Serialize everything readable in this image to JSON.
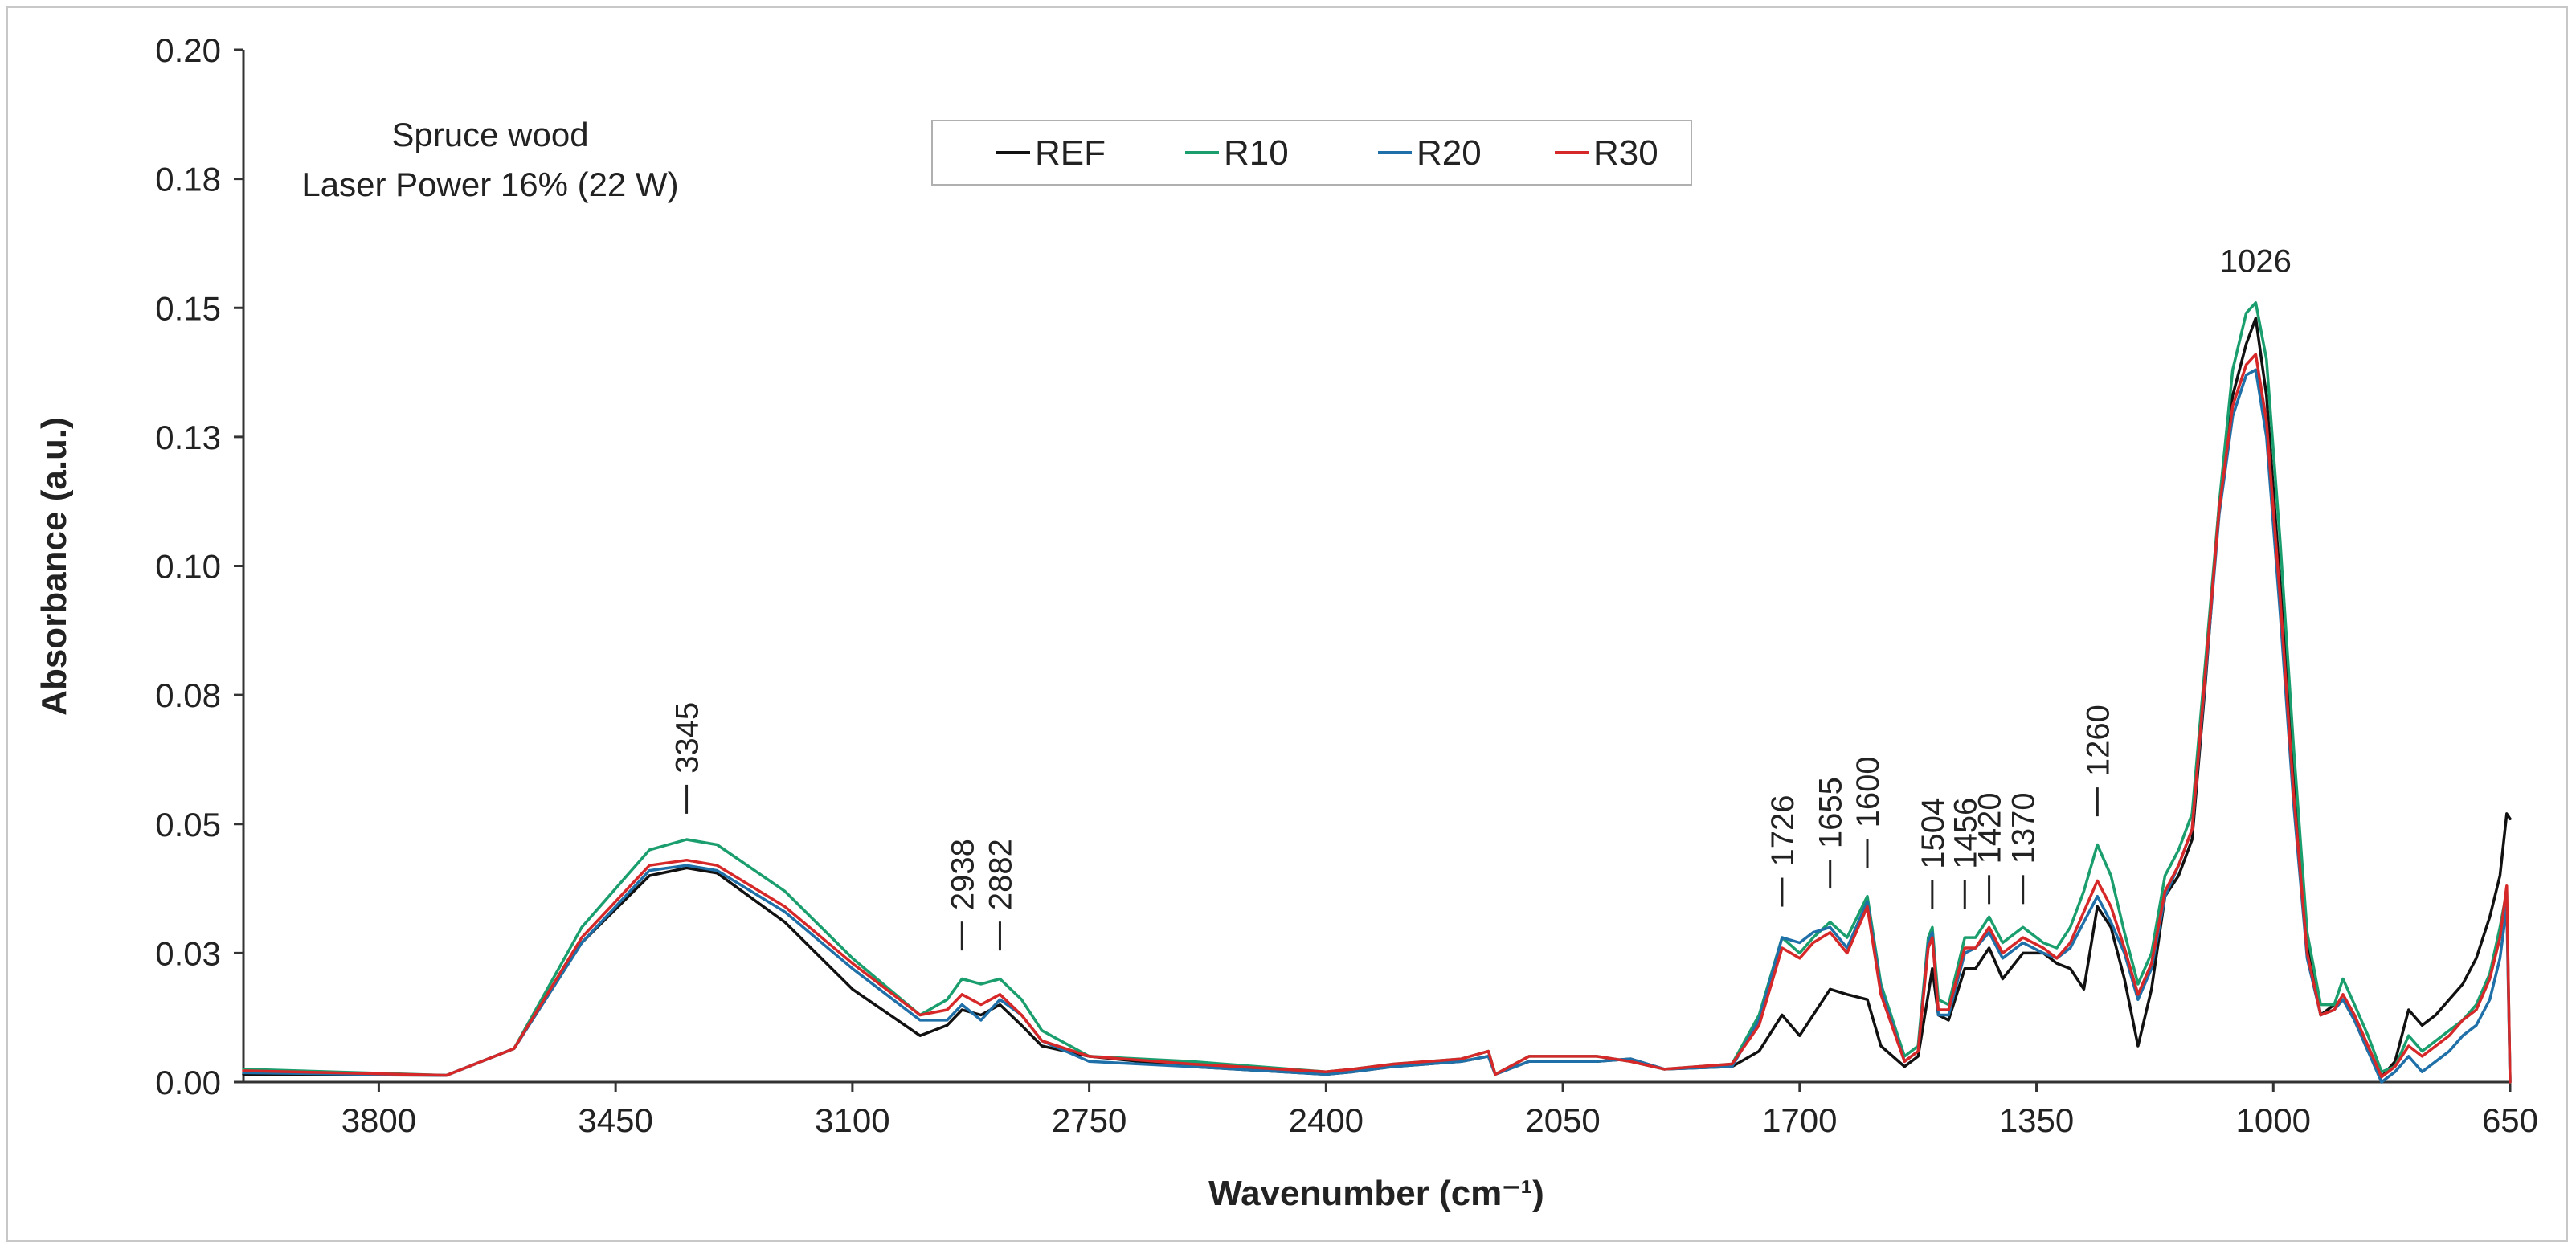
{
  "chart_data": {
    "type": "line",
    "title": "",
    "sample_label_line1": "Spruce wood",
    "sample_label_line2": "Laser Power 16% (22 W)",
    "xlabel": "Wavenumber (cm⁻¹)",
    "ylabel": "Absorbance (a.u.)",
    "xlim": [
      4000,
      650
    ],
    "ylim": [
      0,
      0.2
    ],
    "x_reversed": true,
    "x_ticks": [
      {
        "value": 3800,
        "label": "3800"
      },
      {
        "value": 3450,
        "label": "3450"
      },
      {
        "value": 3100,
        "label": "3100"
      },
      {
        "value": 2750,
        "label": "2750"
      },
      {
        "value": 2400,
        "label": "2400"
      },
      {
        "value": 2050,
        "label": "2050"
      },
      {
        "value": 1700,
        "label": "1700"
      },
      {
        "value": 1350,
        "label": "1350"
      },
      {
        "value": 1000,
        "label": "1000"
      },
      {
        "value": 650,
        "label": "650"
      }
    ],
    "y_ticks": [
      {
        "value": 0,
        "label": "0.00"
      },
      {
        "value": 0.025,
        "label": "0.03"
      },
      {
        "value": 0.05,
        "label": "0.05"
      },
      {
        "value": 0.075,
        "label": "0.08"
      },
      {
        "value": 0.1,
        "label": "0.10"
      },
      {
        "value": 0.125,
        "label": "0.13"
      },
      {
        "value": 0.15,
        "label": "0.15"
      },
      {
        "value": 0.175,
        "label": "0.18"
      },
      {
        "value": 0.2,
        "label": "0.20"
      }
    ],
    "grid": false,
    "legend_position": "top-center",
    "peak_annotations": [
      {
        "wavenumber": 3345,
        "label": "3345",
        "y": 0.052
      },
      {
        "wavenumber": 2938,
        "label": "2938",
        "y": 0.0255
      },
      {
        "wavenumber": 2882,
        "label": "2882",
        "y": 0.0255
      },
      {
        "wavenumber": 1726,
        "label": "1726",
        "y": 0.034
      },
      {
        "wavenumber": 1655,
        "label": "1655",
        "y": 0.0375
      },
      {
        "wavenumber": 1600,
        "label": "1600",
        "y": 0.0415
      },
      {
        "wavenumber": 1504,
        "label": "1504",
        "y": 0.0335
      },
      {
        "wavenumber": 1456,
        "label": "1456",
        "y": 0.0335
      },
      {
        "wavenumber": 1420,
        "label": "1420",
        "y": 0.0345
      },
      {
        "wavenumber": 1370,
        "label": "1370",
        "y": 0.0345
      },
      {
        "wavenumber": 1260,
        "label": "1260",
        "y": 0.0515
      },
      {
        "wavenumber": 1026,
        "label": "1026",
        "y": 0.157,
        "horizontal": true
      }
    ],
    "x": [
      4000,
      3700,
      3600,
      3500,
      3400,
      3345,
      3300,
      3200,
      3100,
      3000,
      2960,
      2938,
      2910,
      2882,
      2850,
      2820,
      2750,
      2600,
      2400,
      2360,
      2300,
      2200,
      2160,
      2150,
      2100,
      2000,
      1950,
      1900,
      1800,
      1760,
      1726,
      1700,
      1680,
      1655,
      1630,
      1600,
      1580,
      1545,
      1525,
      1510,
      1504,
      1495,
      1480,
      1456,
      1440,
      1420,
      1400,
      1370,
      1340,
      1320,
      1300,
      1280,
      1260,
      1240,
      1220,
      1200,
      1180,
      1160,
      1140,
      1120,
      1100,
      1080,
      1060,
      1040,
      1026,
      1010,
      990,
      970,
      950,
      930,
      910,
      897,
      880,
      860,
      840,
      820,
      800,
      780,
      760,
      740,
      720,
      700,
      680,
      665,
      655,
      650
    ],
    "series": [
      {
        "name": "REF",
        "color": "#111111",
        "values": [
          0.0015,
          0.0013,
          0.0065,
          0.027,
          0.04,
          0.0415,
          0.0405,
          0.031,
          0.018,
          0.009,
          0.011,
          0.014,
          0.013,
          0.015,
          0.011,
          0.007,
          0.005,
          0.003,
          0.0015,
          0.002,
          0.003,
          0.004,
          0.005,
          0.0015,
          0.004,
          0.004,
          0.0045,
          0.0025,
          0.003,
          0.006,
          0.013,
          0.009,
          0.013,
          0.018,
          0.017,
          0.016,
          0.007,
          0.003,
          0.005,
          0.017,
          0.022,
          0.013,
          0.012,
          0.022,
          0.022,
          0.026,
          0.02,
          0.025,
          0.025,
          0.023,
          0.022,
          0.018,
          0.034,
          0.03,
          0.02,
          0.007,
          0.018,
          0.036,
          0.04,
          0.047,
          0.078,
          0.112,
          0.133,
          0.143,
          0.148,
          0.133,
          0.097,
          0.06,
          0.027,
          0.013,
          0.015,
          0.016,
          0.012,
          0.006,
          0.001,
          0.004,
          0.014,
          0.011,
          0.013,
          0.016,
          0.019,
          0.024,
          0.032,
          0.04,
          0.052,
          0.051
        ]
      },
      {
        "name": "R10",
        "color": "#1a9e6e",
        "values": [
          0.0025,
          0.0013,
          0.0065,
          0.03,
          0.045,
          0.047,
          0.046,
          0.037,
          0.024,
          0.013,
          0.016,
          0.02,
          0.019,
          0.02,
          0.016,
          0.01,
          0.005,
          0.004,
          0.002,
          0.0025,
          0.0035,
          0.0045,
          0.006,
          0.0015,
          0.005,
          0.005,
          0.004,
          0.0025,
          0.0035,
          0.013,
          0.028,
          0.025,
          0.028,
          0.031,
          0.028,
          0.036,
          0.019,
          0.005,
          0.007,
          0.028,
          0.03,
          0.016,
          0.015,
          0.028,
          0.028,
          0.032,
          0.027,
          0.03,
          0.027,
          0.026,
          0.03,
          0.037,
          0.046,
          0.04,
          0.029,
          0.019,
          0.025,
          0.04,
          0.045,
          0.052,
          0.082,
          0.112,
          0.138,
          0.149,
          0.151,
          0.14,
          0.105,
          0.065,
          0.029,
          0.015,
          0.015,
          0.02,
          0.015,
          0.009,
          0.002,
          0.003,
          0.009,
          0.006,
          0.008,
          0.01,
          0.012,
          0.015,
          0.021,
          0.03,
          0.037,
          0.0
        ]
      },
      {
        "name": "R20",
        "color": "#1f70a8",
        "values": [
          0.0018,
          0.0013,
          0.0065,
          0.027,
          0.041,
          0.042,
          0.041,
          0.033,
          0.022,
          0.012,
          0.012,
          0.015,
          0.012,
          0.016,
          0.013,
          0.008,
          0.004,
          0.003,
          0.0015,
          0.002,
          0.003,
          0.004,
          0.005,
          0.0015,
          0.004,
          0.004,
          0.0045,
          0.0025,
          0.003,
          0.012,
          0.028,
          0.027,
          0.029,
          0.03,
          0.026,
          0.035,
          0.018,
          0.004,
          0.006,
          0.027,
          0.029,
          0.013,
          0.013,
          0.025,
          0.026,
          0.029,
          0.024,
          0.027,
          0.025,
          0.024,
          0.026,
          0.031,
          0.036,
          0.031,
          0.025,
          0.016,
          0.022,
          0.036,
          0.042,
          0.049,
          0.079,
          0.11,
          0.129,
          0.137,
          0.138,
          0.125,
          0.091,
          0.054,
          0.024,
          0.013,
          0.014,
          0.016,
          0.012,
          0.006,
          0.0,
          0.002,
          0.005,
          0.002,
          0.004,
          0.006,
          0.009,
          0.011,
          0.016,
          0.024,
          0.034,
          0.0
        ]
      },
      {
        "name": "R30",
        "color": "#d62828",
        "values": [
          0.0022,
          0.0013,
          0.0065,
          0.028,
          0.042,
          0.043,
          0.042,
          0.034,
          0.023,
          0.013,
          0.014,
          0.017,
          0.015,
          0.017,
          0.013,
          0.008,
          0.005,
          0.0035,
          0.002,
          0.0025,
          0.0035,
          0.0045,
          0.006,
          0.0015,
          0.005,
          0.005,
          0.004,
          0.0025,
          0.0035,
          0.011,
          0.026,
          0.024,
          0.027,
          0.029,
          0.025,
          0.034,
          0.017,
          0.004,
          0.006,
          0.026,
          0.028,
          0.014,
          0.014,
          0.026,
          0.026,
          0.03,
          0.025,
          0.028,
          0.026,
          0.024,
          0.027,
          0.033,
          0.039,
          0.034,
          0.026,
          0.017,
          0.023,
          0.037,
          0.042,
          0.049,
          0.08,
          0.111,
          0.131,
          0.139,
          0.141,
          0.128,
          0.094,
          0.056,
          0.025,
          0.013,
          0.014,
          0.017,
          0.013,
          0.007,
          0.001,
          0.003,
          0.007,
          0.005,
          0.007,
          0.009,
          0.012,
          0.014,
          0.02,
          0.028,
          0.038,
          0.0
        ]
      }
    ]
  }
}
